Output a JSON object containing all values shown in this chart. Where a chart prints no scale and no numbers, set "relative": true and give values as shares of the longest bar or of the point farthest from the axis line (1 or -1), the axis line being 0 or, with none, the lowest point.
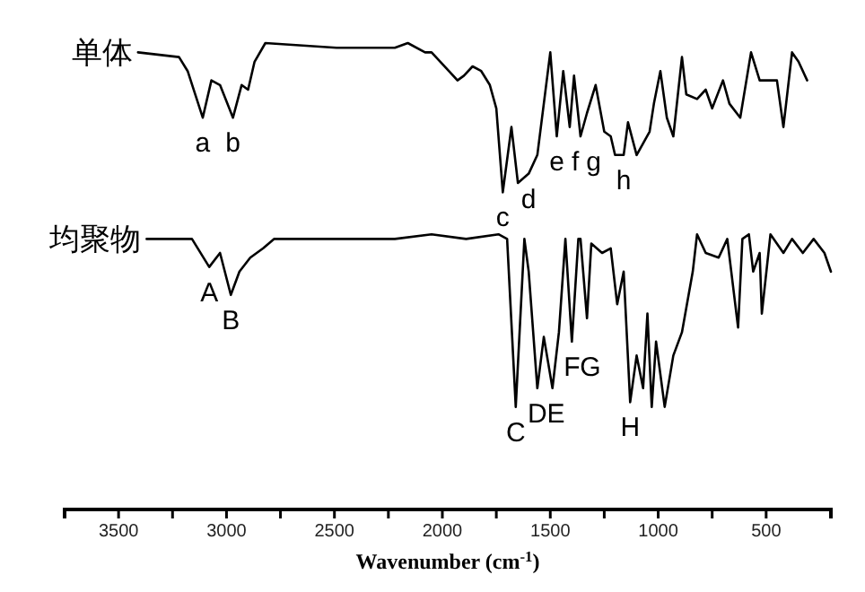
{
  "chart_data": {
    "type": "line",
    "relative": true,
    "xlabel": "Wavenumber (cm$^{-1}$)",
    "xlim": [
      3750,
      200
    ],
    "xticks": [
      3500,
      {
        "value": 3250,
        "label": null
      },
      3000,
      {
        "value": 2750,
        "label": null
      },
      2500,
      {
        "value": 2250,
        "label": null
      },
      2000,
      {
        "value": 1750,
        "label": null
      },
      1500,
      {
        "value": 1250,
        "label": null
      },
      1000,
      {
        "value": 750,
        "label": null
      },
      500
    ],
    "series": [
      {
        "name": "单体",
        "color": "#000000",
        "x": [
          3410,
          3220,
          3180,
          3110,
          3070,
          3030,
          2970,
          2930,
          2900,
          2870,
          2820,
          2490,
          2220,
          2160,
          2080,
          2050,
          1970,
          1930,
          1900,
          1860,
          1820,
          1780,
          1750,
          1720,
          1680,
          1650,
          1600,
          1560,
          1500,
          1470,
          1440,
          1410,
          1390,
          1360,
          1330,
          1290,
          1250,
          1220,
          1200,
          1160,
          1140,
          1100,
          1040,
          1020,
          990,
          960,
          930,
          890,
          870,
          820,
          780,
          750,
          700,
          670,
          620,
          570,
          530,
          480,
          450,
          420,
          380,
          350,
          310
        ],
        "values": [
          0.98,
          0.97,
          0.94,
          0.84,
          0.92,
          0.91,
          0.84,
          0.91,
          0.9,
          0.96,
          1.0,
          0.99,
          0.99,
          1.0,
          0.98,
          0.98,
          0.94,
          0.92,
          0.93,
          0.95,
          0.94,
          0.91,
          0.86,
          0.68,
          0.82,
          0.7,
          0.72,
          0.76,
          0.98,
          0.8,
          0.94,
          0.82,
          0.93,
          0.8,
          0.85,
          0.91,
          0.81,
          0.8,
          0.76,
          0.76,
          0.83,
          0.76,
          0.81,
          0.87,
          0.94,
          0.84,
          0.8,
          0.97,
          0.89,
          0.88,
          0.9,
          0.86,
          0.92,
          0.87,
          0.84,
          0.98,
          0.92,
          0.92,
          0.92,
          0.82,
          0.98,
          0.96,
          0.92
        ]
      },
      {
        "name": "均聚物",
        "color": "#000000",
        "x": [
          3370,
          3160,
          3080,
          3030,
          2980,
          2940,
          2890,
          2830,
          2780,
          2220,
          2050,
          1890,
          1740,
          1700,
          1660,
          1620,
          1600,
          1560,
          1530,
          1490,
          1460,
          1430,
          1400,
          1370,
          1360,
          1330,
          1310,
          1260,
          1220,
          1190,
          1160,
          1130,
          1100,
          1070,
          1050,
          1030,
          1010,
          970,
          930,
          890,
          840,
          820,
          780,
          720,
          680,
          630,
          610,
          580,
          560,
          530,
          520,
          480,
          420,
          380,
          330,
          280,
          230,
          200
        ],
        "values": [
          0.58,
          0.58,
          0.52,
          0.55,
          0.46,
          0.51,
          0.54,
          0.56,
          0.58,
          0.58,
          0.59,
          0.58,
          0.59,
          0.58,
          0.22,
          0.58,
          0.51,
          0.26,
          0.37,
          0.26,
          0.38,
          0.58,
          0.36,
          0.58,
          0.58,
          0.41,
          0.57,
          0.55,
          0.56,
          0.44,
          0.51,
          0.23,
          0.33,
          0.26,
          0.42,
          0.22,
          0.36,
          0.22,
          0.33,
          0.38,
          0.51,
          0.59,
          0.55,
          0.54,
          0.58,
          0.39,
          0.58,
          0.59,
          0.51,
          0.55,
          0.42,
          0.59,
          0.55,
          0.58,
          0.55,
          0.58,
          0.55,
          0.51
        ]
      }
    ],
    "annotations": [
      {
        "text": "a",
        "x": 3110,
        "y": 0.84
      },
      {
        "text": "b",
        "x": 2970,
        "y": 0.84
      },
      {
        "text": "c",
        "x": 1720,
        "y": 0.68
      },
      {
        "text": "d",
        "x": 1600,
        "y": 0.72
      },
      {
        "text": "e",
        "x": 1470,
        "y": 0.8
      },
      {
        "text": "f",
        "x": 1410,
        "y": 0.82
      },
      {
        "text": "g",
        "x": 1360,
        "y": 0.8
      },
      {
        "text": "h",
        "x": 1160,
        "y": 0.76
      },
      {
        "text": "A",
        "x": 3080,
        "y": 0.52
      },
      {
        "text": "B",
        "x": 2980,
        "y": 0.46
      },
      {
        "text": "C",
        "x": 1660,
        "y": 0.22
      },
      {
        "text": "D",
        "x": 1560,
        "y": 0.26
      },
      {
        "text": "E",
        "x": 1490,
        "y": 0.26
      },
      {
        "text": "F",
        "x": 1400,
        "y": 0.36
      },
      {
        "text": "G",
        "x": 1330,
        "y": 0.41
      },
      {
        "text": "H",
        "x": 1130,
        "y": 0.23
      }
    ]
  }
}
